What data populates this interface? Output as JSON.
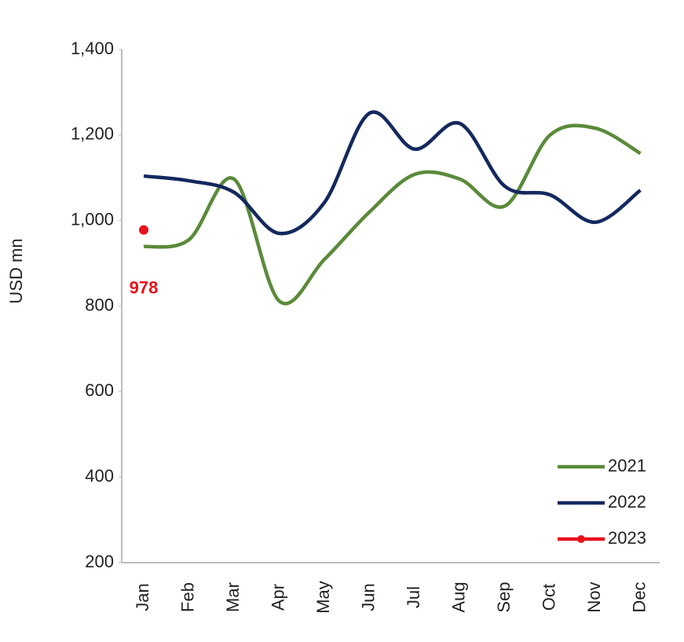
{
  "chart_data": {
    "type": "line",
    "y_label": "USD mn",
    "categories": [
      "Jan",
      "Feb",
      "Mar",
      "Apr",
      "May",
      "Jun",
      "Jul",
      "Aug",
      "Sep",
      "Oct",
      "Nov",
      "Dec"
    ],
    "series": [
      {
        "name": "2021",
        "color": "#5a8a3a",
        "values": [
          939,
          955,
          1097,
          812,
          909,
          1020,
          1108,
          1097,
          1034,
          1200,
          1216,
          1157
        ]
      },
      {
        "name": "2022",
        "color": "#13295e",
        "values": [
          1104,
          1093,
          1066,
          970,
          1042,
          1251,
          1167,
          1227,
          1080,
          1060,
          996,
          1071
        ]
      },
      {
        "name": "2023",
        "color": "#e8121c",
        "values": [
          978,
          null,
          null,
          null,
          null,
          null,
          null,
          null,
          null,
          null,
          null,
          null
        ],
        "value_labels": [
          "978",
          null,
          null,
          null,
          null,
          null,
          null,
          null,
          null,
          null,
          null,
          null
        ]
      }
    ],
    "ylim": [
      200,
      1400
    ],
    "yticks": [
      200,
      400,
      600,
      800,
      {
        "value": 1000,
        "label": "1,000"
      },
      {
        "value": 1200,
        "label": "1,200"
      },
      {
        "value": 1400,
        "label": "1,400"
      }
    ],
    "legend": "lower right"
  }
}
